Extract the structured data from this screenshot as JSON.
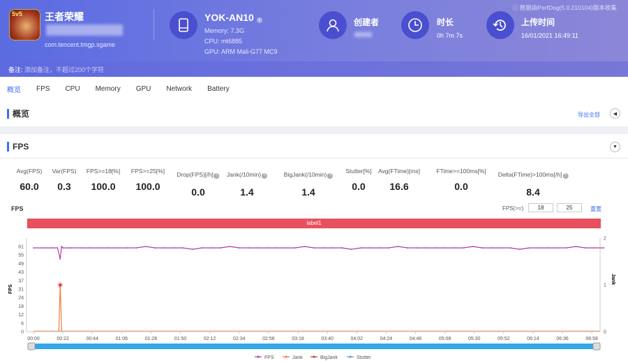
{
  "app": {
    "name": "王者荣耀",
    "package": "com.tencent.tmgp.sgame",
    "icon_badge": "5v5"
  },
  "device": {
    "name": "YOK-AN10",
    "memory": "Memory: 7.3G",
    "cpu": "CPU: mt6885",
    "gpu": "GPU: ARM Mali-G77 MC9"
  },
  "creator": {
    "label": "创建者"
  },
  "duration": {
    "label": "时长",
    "value": "0h 7m 7s"
  },
  "upload": {
    "label": "上传时间",
    "value": "16/01/2021 16:49:11"
  },
  "version_note": "ⓘ 数据由PerfDog(5.0.210104)版本收集",
  "notes": {
    "label": "备注:",
    "placeholder": "添加备注，不超过200个字符"
  },
  "tabs": [
    "概览",
    "FPS",
    "CPU",
    "Memory",
    "GPU",
    "Network",
    "Battery"
  ],
  "overview": {
    "title": "概览",
    "export": "导出全部"
  },
  "fps_section": {
    "title": "FPS",
    "chart_title": "FPS",
    "threshold_label": "FPS(>=)",
    "threshold1": "18",
    "threshold2": "25",
    "reset": "重置",
    "band_label": "label1"
  },
  "metrics": [
    {
      "label": "Avg(FPS)",
      "value": "60.0"
    },
    {
      "label": "Var(FPS)",
      "value": "0.3"
    },
    {
      "label": "FPS>=18[%]",
      "value": "100.0"
    },
    {
      "label": "FPS>=25[%]",
      "value": "100.0"
    },
    {
      "label": "Drop(FPS)[/h]",
      "value": "0.0",
      "help": true
    },
    {
      "label": "Jank(/10min)",
      "value": "1.4",
      "help": true
    },
    {
      "label": "BigJank(/10min)",
      "value": "1.4",
      "help": true
    },
    {
      "label": "Stutter[%]",
      "value": "0.0"
    },
    {
      "label": "Avg(FTime)[ms]",
      "value": "16.6"
    },
    {
      "label": "FTime>=100ms[%]",
      "value": "0.0"
    },
    {
      "label": "Delta(FTime)>100ms[/h]",
      "value": "8.4",
      "help": true
    }
  ],
  "chart_data": {
    "type": "line",
    "ylabel": "FPS",
    "y2label": "Jank",
    "ylim": [
      0,
      61
    ],
    "y2lim": [
      0,
      2
    ],
    "yticks": [
      "0",
      "6",
      "12",
      "18",
      "24",
      "31",
      "37",
      "43",
      "49",
      "55",
      "61"
    ],
    "y2ticks": [
      "0",
      "1",
      "2"
    ],
    "xticks": [
      "00:00",
      "00:22",
      "00:44",
      "01:06",
      "01:28",
      "01:50",
      "02:12",
      "02:34",
      "02:56",
      "03:18",
      "03:40",
      "04:02",
      "04:24",
      "04:46",
      "05:08",
      "05:30",
      "05:52",
      "06:14",
      "06:36",
      "06:58"
    ],
    "xmax_s": 427,
    "series": [
      {
        "name": "FPS",
        "color": "#b03aa8",
        "step_s": 7,
        "values": [
          60,
          60,
          60,
          61,
          60,
          60,
          60,
          60,
          60,
          60,
          60,
          60,
          61,
          60,
          60,
          60,
          60,
          59,
          60,
          60,
          60,
          61,
          60,
          60,
          60,
          60,
          60,
          60,
          60,
          61,
          60,
          60,
          60,
          60,
          59,
          60,
          60,
          60,
          60,
          61,
          60,
          60,
          60,
          60,
          60,
          60,
          60,
          61,
          60,
          60,
          60,
          60,
          59,
          60,
          60,
          60,
          60,
          60,
          61,
          60,
          60,
          60
        ],
        "dip": {
          "t": 20,
          "value": 52
        }
      },
      {
        "name": "Jank",
        "color": "#f07a3a",
        "events": [
          {
            "t": 20,
            "value": 1
          }
        ]
      },
      {
        "name": "BigJank",
        "color": "#c0392b",
        "events": [
          {
            "t": 20,
            "value": 1
          }
        ]
      },
      {
        "name": "Stutter",
        "color": "#5b8fd6",
        "events": []
      }
    ]
  }
}
